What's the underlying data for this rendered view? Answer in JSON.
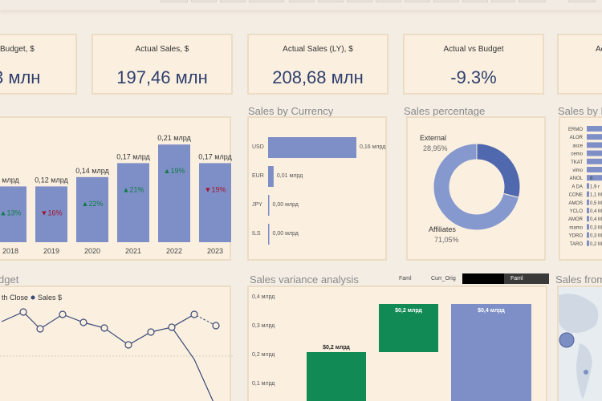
{
  "kpis": [
    {
      "title": "Budget, $",
      "value": "3 млн"
    },
    {
      "title": "Actual Sales, $",
      "value": "197,46 млн"
    },
    {
      "title": "Actual Sales (LY), $",
      "value": "208,68 млн"
    },
    {
      "title": "Actual vs Budget",
      "value": "-9.3%"
    },
    {
      "title": "Ac",
      "value": ""
    }
  ],
  "sections": {
    "currency": "Sales by Currency",
    "percentage": "Sales percentage",
    "sales_by": "Sales by P",
    "budget": "dget",
    "variance": "Sales variance analysis",
    "sales_from": "Sales from"
  },
  "variance_filters": {
    "a": "Faml",
    "b": "Curr_Orig",
    "c": "Faml"
  },
  "budget_legend": {
    "left": "th Close",
    "right": "Sales $"
  },
  "yearly": {
    "years": [
      "2018",
      "2019",
      "2020",
      "2021",
      "2022",
      "2023"
    ],
    "labels": [
      "млрд",
      "0,12 млрд",
      "0,14 млрд",
      "0,17 млрд",
      "0,21 млрд",
      "0,17 млрд"
    ],
    "values": [
      0.12,
      0.12,
      0.14,
      0.17,
      0.21,
      0.17
    ],
    "growth": [
      "13%",
      "16%",
      "22%",
      "21%",
      "19%",
      "19%"
    ],
    "growth_dir": [
      "up",
      "down",
      "up",
      "up",
      "up",
      "down"
    ]
  },
  "chart_data": [
    {
      "type": "bar",
      "categories": [
        "USD",
        "EUR",
        "JPY",
        "ILS"
      ],
      "values": [
        0.16,
        0.01,
        0.0,
        0.0
      ],
      "labels": [
        "0,16 млрд",
        "0,01 млрд",
        "0,00 млрд",
        "0,00 млрд"
      ],
      "title": "Sales by Currency"
    },
    {
      "type": "pie",
      "title": "Sales percentage",
      "categories": [
        "External",
        "Affiliates"
      ],
      "values": [
        28.95,
        71.05
      ],
      "labels": [
        "28,95%",
        "71,05%"
      ]
    },
    {
      "type": "bar",
      "title": "Sales by P",
      "categories": [
        "ERMO",
        "ALOR",
        "asce",
        "cemo",
        "TKAT",
        "vimo",
        "ANOL",
        "A DA",
        "CONE",
        "AMOS",
        "YCLO",
        "AMOR",
        "mamo",
        "YDRO",
        "TARO"
      ],
      "labels": [
        "",
        "",
        "",
        "",
        "",
        "",
        "8",
        "1,9 r",
        "1,1 M",
        "0,5 M",
        "0,4 M",
        "0,4 M",
        "0,3 M",
        "0,3 M",
        "0,2 M"
      ]
    },
    {
      "type": "bar",
      "title": "Sales variance analysis",
      "categories": [
        "",
        "",
        ""
      ],
      "values": [
        0.2,
        0.2,
        0.4
      ],
      "labels": [
        "$0,2 млрд",
        "$0,2 млрд",
        "$0,4 млрд"
      ],
      "y_ticks": [
        "0,4 млрд",
        "0,3 млрд",
        "0,2 млрд",
        "0,1 млрд"
      ]
    }
  ]
}
